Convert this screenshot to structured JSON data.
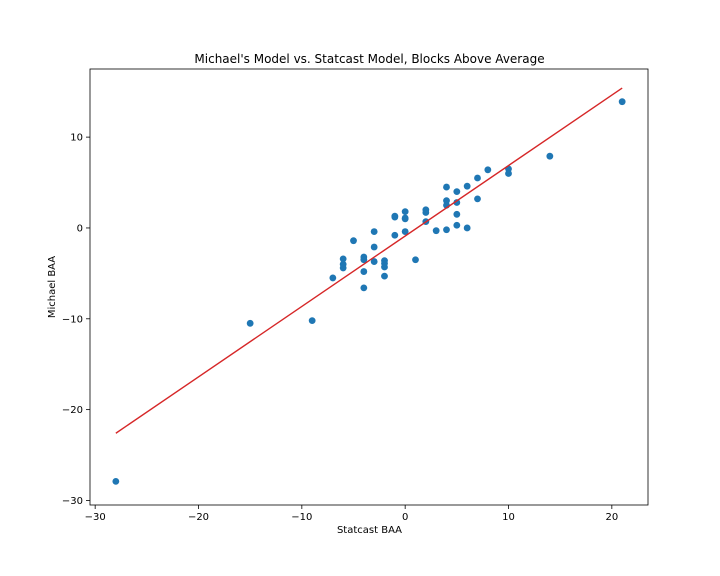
{
  "chart_data": {
    "type": "scatter",
    "title": "Michael's Model vs. Statcast Model, Blocks Above Average",
    "xlabel": "Statcast BAA",
    "ylabel": "Michael BAA",
    "xlim": [
      -30.5,
      23.5
    ],
    "ylim": [
      -30.5,
      17.5
    ],
    "xticks": [
      -30,
      -20,
      -10,
      0,
      10,
      20
    ],
    "yticks": [
      -30,
      -20,
      -10,
      0,
      10
    ],
    "grid": false,
    "legend": "none",
    "point_color": "#1f77b4",
    "fit_color": "#d62728",
    "points": [
      {
        "x": -28,
        "y": -27.9
      },
      {
        "x": -15,
        "y": -10.5
      },
      {
        "x": -9,
        "y": -10.2
      },
      {
        "x": -7,
        "y": -5.5
      },
      {
        "x": -6,
        "y": -3.4
      },
      {
        "x": -6,
        "y": -4.0
      },
      {
        "x": -6,
        "y": -4.4
      },
      {
        "x": -5,
        "y": -1.4
      },
      {
        "x": -4,
        "y": -3.2
      },
      {
        "x": -4,
        "y": -3.5
      },
      {
        "x": -4,
        "y": -4.8
      },
      {
        "x": -4,
        "y": -6.6
      },
      {
        "x": -3,
        "y": -0.4
      },
      {
        "x": -3,
        "y": -2.1
      },
      {
        "x": -3,
        "y": -3.7
      },
      {
        "x": -2,
        "y": -3.6
      },
      {
        "x": -2,
        "y": -3.9
      },
      {
        "x": -2,
        "y": -4.3
      },
      {
        "x": -2,
        "y": -5.3
      },
      {
        "x": -1,
        "y": 1.2
      },
      {
        "x": -1,
        "y": 1.3
      },
      {
        "x": -1,
        "y": -0.8
      },
      {
        "x": 0,
        "y": 1.8
      },
      {
        "x": 0,
        "y": 1.1
      },
      {
        "x": 0,
        "y": 1.0
      },
      {
        "x": 0,
        "y": -0.4
      },
      {
        "x": 1,
        "y": -3.5
      },
      {
        "x": 2,
        "y": 2.0
      },
      {
        "x": 2,
        "y": 1.7
      },
      {
        "x": 2,
        "y": 0.7
      },
      {
        "x": 3,
        "y": -0.3
      },
      {
        "x": 4,
        "y": 4.5
      },
      {
        "x": 4,
        "y": 3.0
      },
      {
        "x": 4,
        "y": 2.5
      },
      {
        "x": 4,
        "y": -0.2
      },
      {
        "x": 5,
        "y": 4.0
      },
      {
        "x": 5,
        "y": 2.8
      },
      {
        "x": 5,
        "y": 1.5
      },
      {
        "x": 5,
        "y": 0.3
      },
      {
        "x": 6,
        "y": 4.6
      },
      {
        "x": 6,
        "y": 0.0
      },
      {
        "x": 7,
        "y": 5.5
      },
      {
        "x": 7,
        "y": 3.2
      },
      {
        "x": 8,
        "y": 6.4
      },
      {
        "x": 10,
        "y": 6.5
      },
      {
        "x": 10,
        "y": 6.0
      },
      {
        "x": 14,
        "y": 7.9
      },
      {
        "x": 21,
        "y": 13.9
      }
    ],
    "fit_line": {
      "x": [
        -28,
        21
      ],
      "y": [
        -22.6,
        15.4
      ]
    }
  }
}
